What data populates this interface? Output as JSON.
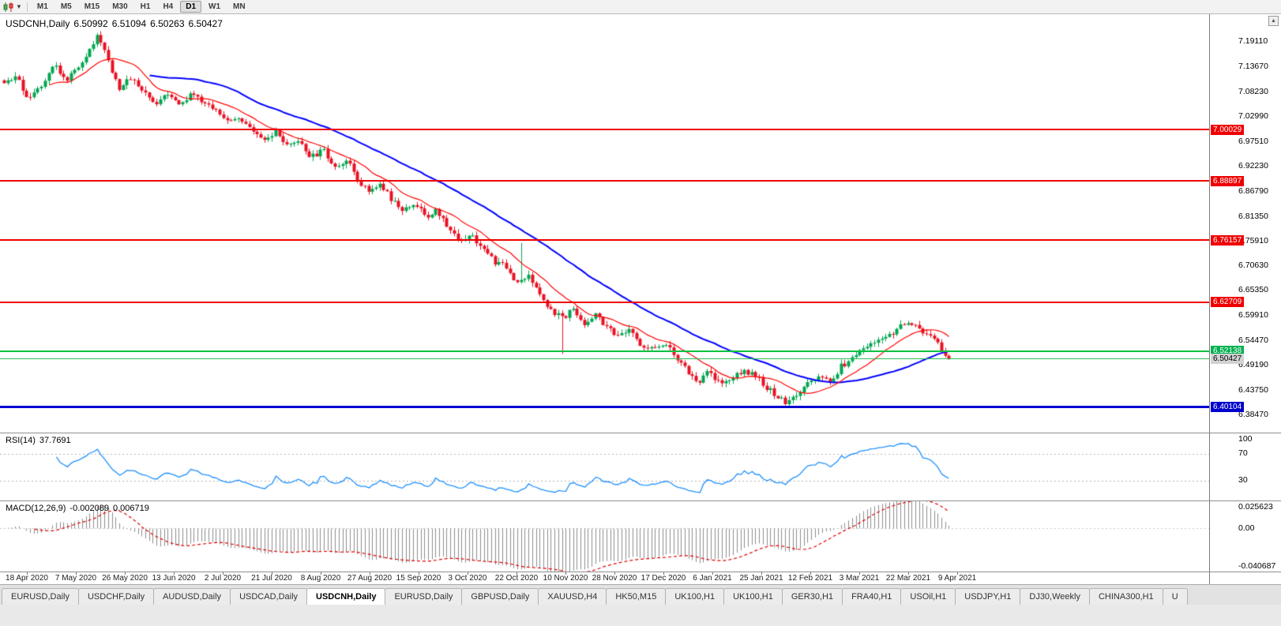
{
  "toolbar": {
    "timeframes": [
      {
        "label": "M1",
        "active": false
      },
      {
        "label": "M5",
        "active": false
      },
      {
        "label": "M15",
        "active": false
      },
      {
        "label": "M30",
        "active": false
      },
      {
        "label": "H1",
        "active": false
      },
      {
        "label": "H4",
        "active": false
      },
      {
        "label": "D1",
        "active": true
      },
      {
        "label": "W1",
        "active": false
      },
      {
        "label": "MN",
        "active": false
      }
    ]
  },
  "icons": {
    "scroll_up": "▲",
    "dropdown_caret": "▼"
  },
  "chart": {
    "title": "USDCNH,Daily",
    "ohlc": {
      "open": "6.50992",
      "high": "6.51094",
      "low": "6.50263",
      "close": "6.50427"
    },
    "price_axis_labels": [
      "7.19110",
      "7.13670",
      "7.08230",
      "7.02990",
      "6.97510",
      "6.92230",
      "6.86790",
      "6.81350",
      "6.75910",
      "6.70630",
      "6.65350",
      "6.59910",
      "6.54470",
      "6.49190",
      "6.43750",
      "6.38470"
    ],
    "levels": [
      {
        "price": 7.00029,
        "label": "7.00029",
        "type": "resistance"
      },
      {
        "price": 6.88897,
        "label": "6.88897",
        "type": "resistance"
      },
      {
        "price": 6.76157,
        "label": "6.76157",
        "type": "resistance"
      },
      {
        "price": 6.62709,
        "label": "6.62709",
        "type": "resistance"
      },
      {
        "price": 6.52138,
        "label": "6.52138",
        "type": "support"
      },
      {
        "price": 6.50427,
        "label": "6.50427",
        "type": "current"
      },
      {
        "price": 6.40104,
        "label": "6.40104",
        "type": "major-support"
      }
    ],
    "date_labels": [
      "18 Apr 2020",
      "7 May 2020",
      "26 May 2020",
      "13 Jun 2020",
      "2 Jul 2020",
      "21 Jul 2020",
      "8 Aug 2020",
      "27 Aug 2020",
      "15 Sep 2020",
      "3 Oct 2020",
      "22 Oct 2020",
      "10 Nov 2020",
      "28 Nov 2020",
      "17 Dec 2020",
      "6 Jan 2021",
      "25 Jan 2021",
      "12 Feb 2021",
      "3 Mar 2021",
      "22 Mar 2021",
      "9 Apr 2021"
    ]
  },
  "rsi": {
    "label": "RSI(14)",
    "value": "37.7691",
    "axis": [
      "100",
      "70",
      "30"
    ]
  },
  "macd": {
    "label": "MACD(12,26,9)",
    "value": "-0.002089",
    "signal_value": "0.006719",
    "axis": {
      "top": "0.025623",
      "zero": "0.00",
      "bottom": "-0.040687"
    }
  },
  "tabs": [
    {
      "label": "EURUSD,Daily",
      "active": false
    },
    {
      "label": "USDCHF,Daily",
      "active": false
    },
    {
      "label": "AUDUSD,Daily",
      "active": false
    },
    {
      "label": "USDCAD,Daily",
      "active": false
    },
    {
      "label": "USDCNH,Daily",
      "active": true
    },
    {
      "label": "EURUSD,Daily",
      "active": false
    },
    {
      "label": "GBPUSD,Daily",
      "active": false
    },
    {
      "label": "XAUUSD,H4",
      "active": false
    },
    {
      "label": "HK50,M15",
      "active": false
    },
    {
      "label": "UK100,H1",
      "active": false
    },
    {
      "label": "UK100,H1",
      "active": false
    },
    {
      "label": "GER30,H1",
      "active": false
    },
    {
      "label": "FRA40,H1",
      "active": false
    },
    {
      "label": "USOil,H1",
      "active": false
    },
    {
      "label": "USDJPY,H1",
      "active": false
    },
    {
      "label": "DJ30,Weekly",
      "active": false
    },
    {
      "label": "CHINA300,H1",
      "active": false
    },
    {
      "label": "U",
      "active": false
    }
  ],
  "colors": {
    "bull": "#00a651",
    "bear": "#e81123",
    "ma_fast": "#ff0000",
    "ma_slow": "#0000ff",
    "resistance": "#f00000",
    "support": "#00b050",
    "major_support": "#0000cc",
    "rsi_line": "#1e90ff",
    "macd_bar": "#8c8c8c",
    "macd_signal": "#e00000"
  },
  "chart_data": {
    "type": "candlestick",
    "symbol": "USDCNH",
    "period": "Daily",
    "ohlc_current": {
      "open": 6.50992,
      "high": 6.51094,
      "low": 6.50263,
      "close": 6.50427
    },
    "candle_count": 255,
    "last_close": 6.50427,
    "ylim": [
      6.345,
      7.25
    ],
    "x_range": [
      "18 Apr 2020",
      "9 Apr 2021"
    ],
    "price_anchors": [
      [
        0.0,
        7.095
      ],
      [
        0.012,
        7.115
      ],
      [
        0.025,
        7.07
      ],
      [
        0.04,
        7.1
      ],
      [
        0.052,
        7.145
      ],
      [
        0.065,
        7.105
      ],
      [
        0.078,
        7.135
      ],
      [
        0.09,
        7.175
      ],
      [
        0.1,
        7.205
      ],
      [
        0.11,
        7.15
      ],
      [
        0.122,
        7.09
      ],
      [
        0.135,
        7.115
      ],
      [
        0.148,
        7.08
      ],
      [
        0.16,
        7.055
      ],
      [
        0.172,
        7.085
      ],
      [
        0.185,
        7.055
      ],
      [
        0.198,
        7.075
      ],
      [
        0.21,
        7.06
      ],
      [
        0.222,
        7.045
      ],
      [
        0.235,
        7.02
      ],
      [
        0.248,
        7.03
      ],
      [
        0.262,
        6.995
      ],
      [
        0.275,
        6.975
      ],
      [
        0.288,
        6.995
      ],
      [
        0.3,
        6.96
      ],
      [
        0.312,
        6.975
      ],
      [
        0.325,
        6.94
      ],
      [
        0.338,
        6.955
      ],
      [
        0.35,
        6.92
      ],
      [
        0.362,
        6.935
      ],
      [
        0.374,
        6.895
      ],
      [
        0.386,
        6.865
      ],
      [
        0.398,
        6.885
      ],
      [
        0.41,
        6.85
      ],
      [
        0.422,
        6.82
      ],
      [
        0.434,
        6.845
      ],
      [
        0.446,
        6.81
      ],
      [
        0.458,
        6.825
      ],
      [
        0.47,
        6.79
      ],
      [
        0.482,
        6.76
      ],
      [
        0.494,
        6.775
      ],
      [
        0.506,
        6.745
      ],
      [
        0.518,
        6.715
      ],
      [
        0.53,
        6.705
      ],
      [
        0.542,
        6.67
      ],
      [
        0.554,
        6.685
      ],
      [
        0.566,
        6.645
      ],
      [
        0.578,
        6.615
      ],
      [
        0.59,
        6.59
      ],
      [
        0.602,
        6.615
      ],
      [
        0.614,
        6.58
      ],
      [
        0.626,
        6.6
      ],
      [
        0.638,
        6.575
      ],
      [
        0.65,
        6.55
      ],
      [
        0.662,
        6.565
      ],
      [
        0.674,
        6.535
      ],
      [
        0.686,
        6.525
      ],
      [
        0.698,
        6.54
      ],
      [
        0.71,
        6.51
      ],
      [
        0.722,
        6.48
      ],
      [
        0.734,
        6.455
      ],
      [
        0.746,
        6.475
      ],
      [
        0.758,
        6.45
      ],
      [
        0.77,
        6.465
      ],
      [
        0.782,
        6.48
      ],
      [
        0.794,
        6.47
      ],
      [
        0.806,
        6.445
      ],
      [
        0.818,
        6.425
      ],
      [
        0.828,
        6.408
      ],
      [
        0.838,
        6.42
      ],
      [
        0.85,
        6.45
      ],
      [
        0.862,
        6.465
      ],
      [
        0.874,
        6.452
      ],
      [
        0.886,
        6.49
      ],
      [
        0.898,
        6.505
      ],
      [
        0.91,
        6.53
      ],
      [
        0.922,
        6.545
      ],
      [
        0.934,
        6.555
      ],
      [
        0.946,
        6.57
      ],
      [
        0.956,
        6.585
      ],
      [
        0.966,
        6.572
      ],
      [
        0.976,
        6.556
      ],
      [
        0.988,
        6.538
      ],
      [
        1.0,
        6.504
      ]
    ],
    "spikes": [
      {
        "f": 0.547,
        "high": 6.755
      },
      {
        "f": 0.592,
        "low": 6.515
      }
    ],
    "key_levels": [
      7.00029,
      6.88897,
      6.76157,
      6.62709,
      6.52138,
      6.50427,
      6.40104
    ],
    "moving_averages": [
      {
        "period": 13,
        "color_key": "ma_fast"
      },
      {
        "period": 40,
        "color_key": "ma_slow"
      }
    ],
    "rsi": {
      "period": 14,
      "current": 37.7691,
      "levels": [
        70,
        30
      ]
    },
    "macd": {
      "fast": 12,
      "slow": 26,
      "signal": 9,
      "current": -0.002089,
      "signal_current": 0.006719,
      "range": [
        -0.040687,
        0.025623
      ]
    }
  }
}
